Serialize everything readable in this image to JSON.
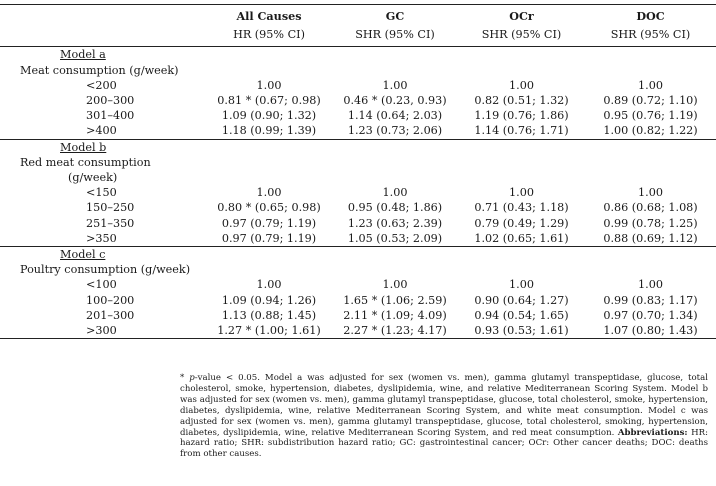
{
  "header": {
    "columns": [
      "",
      "All Causes",
      "GC",
      "OCr",
      "DOC"
    ],
    "subheaders": [
      "",
      "HR (95% CI)",
      "SHR (95% CI)",
      "SHR (95% CI)",
      "SHR (95% CI)"
    ]
  },
  "model_a": {
    "title": "Model a",
    "group": "Meat consumption (g/week)",
    "rows": [
      {
        "level": "<200",
        "all": "1.00",
        "gc": "1.00",
        "ocr": "1.00",
        "doc": "1.00"
      },
      {
        "level": "200–300",
        "all": "0.81 * (0.67; 0.98)",
        "gc": "0.46 * (0.23, 0.93)",
        "ocr": "0.82 (0.51; 1.32)",
        "doc": "0.89 (0.72; 1.10)"
      },
      {
        "level": "301–400",
        "all": "1.09 (0.90; 1.32)",
        "gc": "1.14 (0.64; 2.03)",
        "ocr": "1.19 (0.76; 1.86)",
        "doc": "0.95 (0.76; 1.19)"
      },
      {
        "level": ">400",
        "all": "1.18 (0.99; 1.39)",
        "gc": "1.23 (0.73; 2.06)",
        "ocr": "1.14 (0.76; 1.71)",
        "doc": "1.00 (0.82; 1.22)"
      }
    ]
  },
  "model_b": {
    "title": "Model b",
    "group": "Red meat consumption",
    "group_cont": "(g/week)",
    "rows": [
      {
        "level": "<150",
        "all": "1.00",
        "gc": "1.00",
        "ocr": "1.00",
        "doc": "1.00"
      },
      {
        "level": "150–250",
        "all": "0.80 * (0.65; 0.98)",
        "gc": "0.95 (0.48; 1.86)",
        "ocr": "0.71 (0.43; 1.18)",
        "doc": "0.86 (0.68; 1.08)"
      },
      {
        "level": "251–350",
        "all": "0.97 (0.79; 1.19)",
        "gc": "1.23 (0.63; 2.39)",
        "ocr": "0.79 (0.49; 1.29)",
        "doc": "0.99 (0.78; 1.25)"
      },
      {
        "level": ">350",
        "all": "0.97 (0.79; 1.19)",
        "gc": "1.05 (0.53; 2.09)",
        "ocr": "1.02 (0.65; 1.61)",
        "doc": "0.88 (0.69; 1.12)"
      }
    ]
  },
  "model_c": {
    "title": "Model c",
    "group": "Poultry consumption (g/week)",
    "rows": [
      {
        "level": "<100",
        "all": "1.00",
        "gc": "1.00",
        "ocr": "1.00",
        "doc": "1.00"
      },
      {
        "level": "100–200",
        "all": "1.09 (0.94; 1.26)",
        "gc": "1.65 * (1.06; 2.59)",
        "ocr": "0.90 (0.64; 1.27)",
        "doc": "0.99 (0.83; 1.17)"
      },
      {
        "level": "201–300",
        "all": "1.13 (0.88; 1.45)",
        "gc": "2.11 * (1.09; 4.09)",
        "ocr": "0.94 (0.54; 1.65)",
        "doc": "0.97 (0.70; 1.34)"
      },
      {
        "level": ">300",
        "all": "1.27 * (1.00; 1.61)",
        "gc": "2.27 * (1.23; 4.17)",
        "ocr": "0.93 (0.53; 1.61)",
        "doc": "1.07 (0.80; 1.43)"
      }
    ]
  },
  "footnote": {
    "star": "*",
    "pvalue_p": "p",
    "pvalue_rest": "-value < 0.05. Model a was adjusted for sex (women vs. men), gamma glutamyl transpeptidase, glucose, total cholesterol, smoke, hypertension, diabetes, dyslipidemia, wine, and relative Mediterranean Scoring System. Model b was adjusted for sex (women vs. men), gamma glutamyl transpeptidase, glucose, total cholesterol, smoke, hypertension, diabetes, dyslipidemia, wine, relative Mediterranean Scoring System, and white meat consumption. Model c was adjusted for sex (women vs. men), gamma glutamyl transpeptidase, glucose, total cholesterol, smoking, hypertension, diabetes, dyslipidemia, wine, relative Mediterranean Scoring System, and red meat consumption.",
    "abbrev_label": "Abbreviations:",
    "abbrev_text": "HR: hazard ratio; SHR: subdistribution hazard ratio; GC: gastrointestinal cancer; OCr: Other cancer deaths; DOC: deaths from other causes."
  }
}
